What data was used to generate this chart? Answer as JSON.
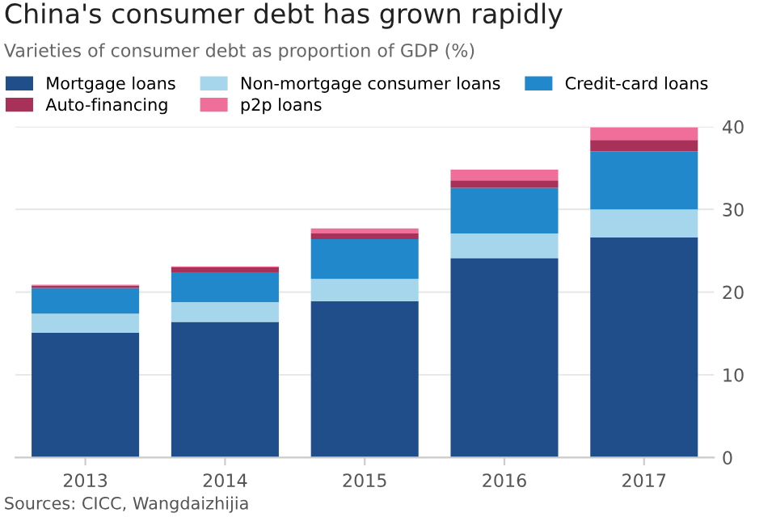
{
  "chart_data": {
    "type": "bar",
    "title": "China's consumer debt has grown rapidly",
    "subtitle": "Varieties of consumer debt as proportion of GDP (%)",
    "categories": [
      "2013",
      "2014",
      "2015",
      "2016",
      "2017"
    ],
    "stacked": true,
    "series": [
      {
        "name": "Mortgage loans",
        "color": "#1f4e8a",
        "values": [
          15.1,
          16.4,
          18.9,
          24.1,
          26.6
        ]
      },
      {
        "name": "Non-mortgage consumer loans",
        "color": "#a6d6ec",
        "values": [
          2.3,
          2.4,
          2.7,
          3.0,
          3.4
        ]
      },
      {
        "name": "Credit-card loans",
        "color": "#2288cc",
        "values": [
          3.1,
          3.6,
          4.8,
          5.5,
          7.0
        ]
      },
      {
        "name": "Auto-financing",
        "color": "#a8315a",
        "values": [
          0.3,
          0.6,
          0.7,
          0.9,
          1.4
        ]
      },
      {
        "name": "p2p loans",
        "color": "#f06e9a",
        "values": [
          0.1,
          0.1,
          0.6,
          1.3,
          1.5
        ]
      }
    ],
    "ylim": [
      0,
      40
    ],
    "yticks": [
      0,
      10,
      20,
      30,
      40
    ],
    "grid": "y",
    "legend": "top left",
    "annotations": [
      "Sources: CICC, Wangdaizhijia"
    ]
  }
}
